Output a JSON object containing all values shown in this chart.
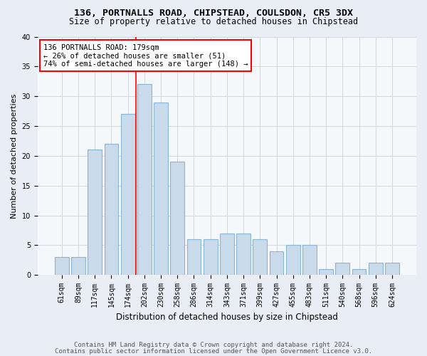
{
  "title1": "136, PORTNALLS ROAD, CHIPSTEAD, COULSDON, CR5 3DX",
  "title2": "Size of property relative to detached houses in Chipstead",
  "xlabel": "Distribution of detached houses by size in Chipstead",
  "ylabel": "Number of detached properties",
  "categories": [
    "61sqm",
    "89sqm",
    "117sqm",
    "145sqm",
    "174sqm",
    "202sqm",
    "230sqm",
    "258sqm",
    "286sqm",
    "314sqm",
    "343sqm",
    "371sqm",
    "399sqm",
    "427sqm",
    "455sqm",
    "483sqm",
    "511sqm",
    "540sqm",
    "568sqm",
    "596sqm",
    "624sqm"
  ],
  "values": [
    3,
    3,
    21,
    22,
    27,
    32,
    29,
    19,
    6,
    6,
    7,
    7,
    6,
    4,
    5,
    5,
    1,
    2,
    1,
    2,
    2
  ],
  "bar_color": "#c9daea",
  "bar_edge_color": "#8ab4d4",
  "property_line_x": 4.5,
  "annotation_line1": "136 PORTNALLS ROAD: 179sqm",
  "annotation_line2": "← 26% of detached houses are smaller (51)",
  "annotation_line3": "74% of semi-detached houses are larger (148) →",
  "annotation_box_color": "white",
  "annotation_border_color": "red",
  "property_line_color": "red",
  "ylim": [
    0,
    40
  ],
  "yticks": [
    0,
    5,
    10,
    15,
    20,
    25,
    30,
    35,
    40
  ],
  "footer1": "Contains HM Land Registry data © Crown copyright and database right 2024.",
  "footer2": "Contains public sector information licensed under the Open Government Licence v3.0.",
  "bg_color": "#e8eef4",
  "plot_bg_color": "#f5f8fb",
  "grid_color": "#d0d8e0",
  "title1_fontsize": 9.5,
  "title2_fontsize": 8.5,
  "xlabel_fontsize": 8.5,
  "ylabel_fontsize": 8,
  "footer_fontsize": 6.5,
  "tick_fontsize": 7,
  "annotation_fontsize": 7.5
}
